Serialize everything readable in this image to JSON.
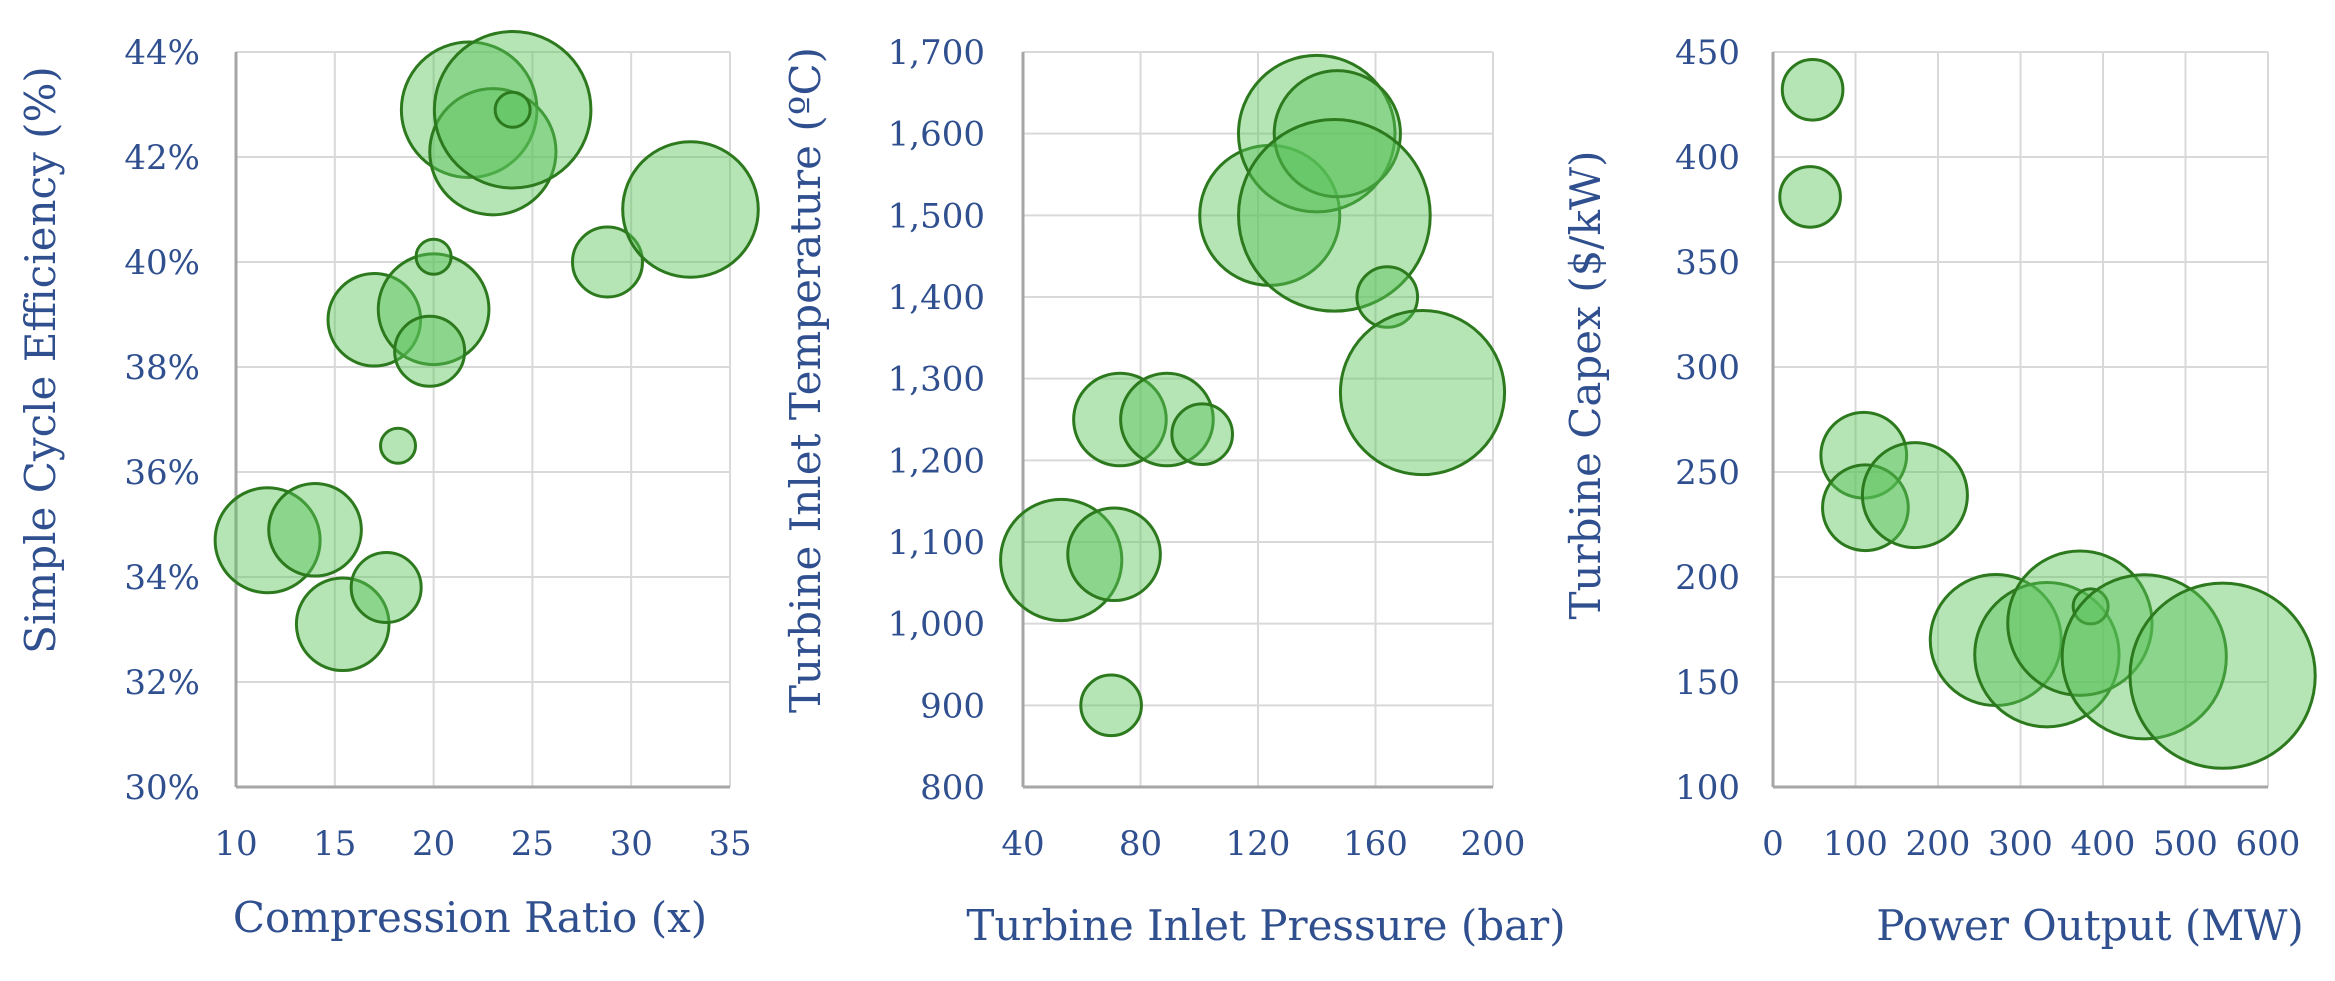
{
  "colors": {
    "bubble_fill": "#5cc45c",
    "bubble_stroke": "#2d7a1e",
    "text": "#2F4F8F",
    "grid": "#d9d9d9",
    "axis": "#a6a6a6"
  },
  "chart_data": [
    {
      "type": "scatter",
      "variant": "bubble",
      "xlabel": "Compression Ratio (x)",
      "ylabel": "Simple Cycle Efficiency (%)",
      "xlim": [
        10,
        35
      ],
      "ylim": [
        30,
        44
      ],
      "x_ticks": [
        10,
        15,
        20,
        25,
        30,
        35
      ],
      "y_ticks": [
        30,
        32,
        34,
        36,
        38,
        40,
        42,
        44
      ],
      "x_tick_labels": [
        "10",
        "15",
        "20",
        "25",
        "30",
        "35"
      ],
      "y_tick_labels": [
        "30%",
        "32%",
        "34%",
        "36%",
        "38%",
        "40%",
        "42%",
        "44%"
      ],
      "grid": true,
      "points": [
        {
          "x": 11.6,
          "y": 34.7,
          "size": 9
        },
        {
          "x": 14.0,
          "y": 34.9,
          "size": 7
        },
        {
          "x": 15.4,
          "y": 33.1,
          "size": 7
        },
        {
          "x": 17.6,
          "y": 33.8,
          "size": 4
        },
        {
          "x": 18.2,
          "y": 36.5,
          "size": 1
        },
        {
          "x": 17.0,
          "y": 38.9,
          "size": 7
        },
        {
          "x": 20.0,
          "y": 39.1,
          "size": 10
        },
        {
          "x": 19.8,
          "y": 38.3,
          "size": 4
        },
        {
          "x": 20.0,
          "y": 40.1,
          "size": 1
        },
        {
          "x": 21.8,
          "y": 42.9,
          "size": 15
        },
        {
          "x": 23.0,
          "y": 42.1,
          "size": 13
        },
        {
          "x": 24.0,
          "y": 42.9,
          "size": 20
        },
        {
          "x": 24.0,
          "y": 42.9,
          "size": 1
        },
        {
          "x": 28.8,
          "y": 40.0,
          "size": 4
        },
        {
          "x": 33.0,
          "y": 41.0,
          "size": 15
        }
      ]
    },
    {
      "type": "scatter",
      "variant": "bubble",
      "xlabel": "Turbine Inlet Pressure (bar)",
      "ylabel": "Turbine Inlet Temperature (ºC)",
      "xlim": [
        40,
        200
      ],
      "ylim": [
        800,
        1700
      ],
      "x_ticks": [
        40,
        80,
        120,
        160,
        200
      ],
      "y_ticks": [
        800,
        900,
        1000,
        1100,
        1200,
        1300,
        1400,
        1500,
        1600,
        1700
      ],
      "x_tick_labels": [
        "40",
        "80",
        "120",
        "160",
        "200"
      ],
      "y_tick_labels": [
        "800",
        "900",
        "1,000",
        "1,100",
        "1,200",
        "1,300",
        "1,400",
        "1,500",
        "1,600",
        "1,700"
      ],
      "grid": true,
      "points": [
        {
          "x": 53,
          "y": 1078,
          "size": 12
        },
        {
          "x": 71,
          "y": 1085,
          "size": 7
        },
        {
          "x": 70,
          "y": 900,
          "size": 3
        },
        {
          "x": 73,
          "y": 1250,
          "size": 7
        },
        {
          "x": 89,
          "y": 1250,
          "size": 7
        },
        {
          "x": 101,
          "y": 1232,
          "size": 3
        },
        {
          "x": 124,
          "y": 1500,
          "size": 16
        },
        {
          "x": 140,
          "y": 1600,
          "size": 20
        },
        {
          "x": 147,
          "y": 1600,
          "size": 13
        },
        {
          "x": 146,
          "y": 1500,
          "size": 30
        },
        {
          "x": 164,
          "y": 1400,
          "size": 3
        },
        {
          "x": 176,
          "y": 1283,
          "size": 22
        }
      ]
    },
    {
      "type": "scatter",
      "variant": "bubble",
      "xlabel": "Power Output (MW)",
      "ylabel": "Turbine Capex ($/kW)",
      "xlim": [
        0,
        600
      ],
      "ylim": [
        100,
        450
      ],
      "x_ticks": [
        0,
        100,
        200,
        300,
        400,
        500,
        600
      ],
      "y_ticks": [
        100,
        150,
        200,
        250,
        300,
        350,
        400,
        450
      ],
      "x_tick_labels": [
        "0",
        "100",
        "200",
        "300",
        "400",
        "500",
        "600"
      ],
      "y_tick_labels": [
        "100",
        "150",
        "200",
        "250",
        "300",
        "350",
        "400",
        "450"
      ],
      "grid": true,
      "points": [
        {
          "x": 48,
          "y": 432,
          "size": 3
        },
        {
          "x": 45,
          "y": 381,
          "size": 3
        },
        {
          "x": 110,
          "y": 258,
          "size": 6
        },
        {
          "x": 112,
          "y": 233,
          "size": 6
        },
        {
          "x": 172,
          "y": 239,
          "size": 9
        },
        {
          "x": 270,
          "y": 170,
          "size": 14
        },
        {
          "x": 332,
          "y": 163,
          "size": 17
        },
        {
          "x": 372,
          "y": 178,
          "size": 17
        },
        {
          "x": 385,
          "y": 186,
          "size": 1
        },
        {
          "x": 450,
          "y": 162,
          "size": 22
        },
        {
          "x": 545,
          "y": 153,
          "size": 28
        }
      ]
    }
  ]
}
